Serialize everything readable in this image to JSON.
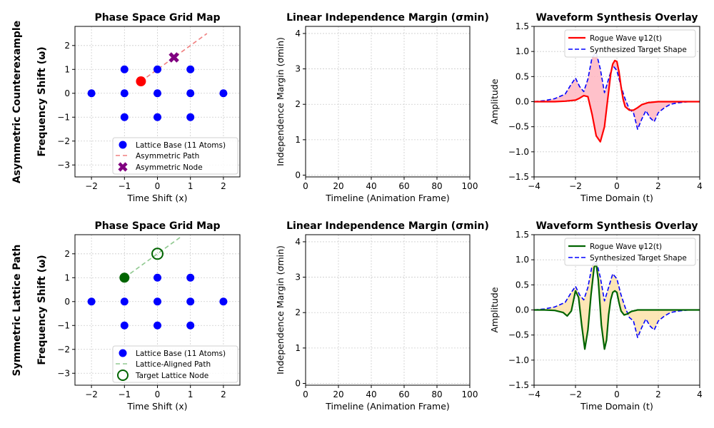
{
  "figure": {
    "row_labels": [
      "Asymmetric Counterexample",
      "Symmetric Lattice Path"
    ]
  },
  "chart_data": [
    {
      "panel": "row1-scatter",
      "type": "scatter",
      "title": "Phase Space Grid Map",
      "xlabel": "Time Shift (x)",
      "ylabel": "Frequency Shift (ω)",
      "xlim": [
        -2.5,
        2.5
      ],
      "ylim": [
        -3.5,
        2.8
      ],
      "xticks": [
        -2,
        -1,
        0,
        1,
        2
      ],
      "yticks": [
        -3,
        -2,
        -1,
        0,
        1,
        2
      ],
      "grid": true,
      "legend_position": "bottom-right",
      "lattice": {
        "name": "Lattice Base (11 Atoms)",
        "color": "#0000ff",
        "points": [
          [
            -2,
            0
          ],
          [
            -1,
            -1
          ],
          [
            -1,
            0
          ],
          [
            -1,
            1
          ],
          [
            0,
            -1
          ],
          [
            0,
            0
          ],
          [
            0,
            1
          ],
          [
            1,
            -1
          ],
          [
            1,
            0
          ],
          [
            1,
            1
          ],
          [
            2,
            0
          ]
        ]
      },
      "path": {
        "name": "Asymmetric Path",
        "color": "#f08080",
        "from": [
          -0.5,
          0.5
        ],
        "to": [
          1.5,
          2.5
        ]
      },
      "start_point": {
        "x": -0.5,
        "y": 0.5,
        "color": "#ff0000"
      },
      "target": {
        "name": "Asymmetric Node",
        "x": 0.5,
        "y": 1.5,
        "marker": "x",
        "color": "#800080"
      }
    },
    {
      "panel": "row1-margin",
      "type": "line",
      "title": "Linear Independence Margin (σmin)",
      "xlabel": "Timeline (Animation Frame)",
      "ylabel": "Independence Margin (σmin)",
      "xlim": [
        0,
        100
      ],
      "ylim": [
        -0.05,
        4.2
      ],
      "xticks": [
        0,
        20,
        40,
        60,
        80,
        100
      ],
      "yticks": [
        0,
        1,
        2,
        3,
        4
      ],
      "grid": true,
      "series": []
    },
    {
      "panel": "row1-wave",
      "type": "line",
      "title": "Waveform Synthesis Overlay",
      "xlabel": "Time Domain (t)",
      "ylabel": "Amplitude",
      "xlim": [
        -4,
        4
      ],
      "ylim": [
        -1.5,
        1.5
      ],
      "xticks": [
        -4,
        -2,
        0,
        2,
        4
      ],
      "yticks": [
        -1.5,
        -1.0,
        -0.5,
        0.0,
        0.5,
        1.0,
        1.5
      ],
      "grid": true,
      "legend_position": "top-right",
      "fill_color": "#ffb6c1",
      "series": [
        {
          "name": "Rogue Wave ψ12(t)",
          "color": "#ff0000",
          "style": "solid",
          "x": [
            -4,
            -3.5,
            -3,
            -2.5,
            -2,
            -1.8,
            -1.6,
            -1.4,
            -1.2,
            -1.0,
            -0.8,
            -0.6,
            -0.4,
            -0.3,
            -0.2,
            -0.1,
            0,
            0.1,
            0.2,
            0.3,
            0.4,
            0.6,
            0.8,
            1.0,
            1.2,
            1.5,
            2,
            2.5,
            3,
            3.5,
            4
          ],
          "y": [
            0,
            0,
            0,
            0.01,
            0.03,
            0.07,
            0.12,
            0.1,
            -0.25,
            -0.68,
            -0.8,
            -0.5,
            0.2,
            0.55,
            0.75,
            0.82,
            0.8,
            0.6,
            0.3,
            0.05,
            -0.1,
            -0.17,
            -0.17,
            -0.12,
            -0.06,
            -0.02,
            0,
            0,
            0,
            0,
            0
          ]
        },
        {
          "name": "Synthesized Target Shape",
          "color": "#0000ff",
          "style": "dashed",
          "x": [
            -4,
            -3.5,
            -3,
            -2.5,
            -2.2,
            -2.0,
            -1.8,
            -1.6,
            -1.4,
            -1.2,
            -1.0,
            -0.8,
            -0.6,
            -0.4,
            -0.2,
            0,
            0.2,
            0.4,
            0.6,
            0.8,
            1.0,
            1.2,
            1.4,
            1.6,
            1.8,
            2.0,
            2.3,
            2.6,
            3,
            3.5,
            4
          ],
          "y": [
            0,
            0.02,
            0.06,
            0.15,
            0.35,
            0.47,
            0.3,
            0.2,
            0.45,
            0.88,
            0.98,
            0.65,
            0.18,
            0.45,
            0.72,
            0.62,
            0.3,
            0.05,
            -0.15,
            -0.22,
            -0.55,
            -0.35,
            -0.18,
            -0.32,
            -0.4,
            -0.22,
            -0.12,
            -0.05,
            -0.02,
            0,
            0
          ]
        }
      ]
    },
    {
      "panel": "row2-scatter",
      "type": "scatter",
      "title": "Phase Space Grid Map",
      "xlabel": "Time Shift (x)",
      "ylabel": "Frequency Shift (ω)",
      "xlim": [
        -2.5,
        2.5
      ],
      "ylim": [
        -3.5,
        2.8
      ],
      "xticks": [
        -2,
        -1,
        0,
        1,
        2
      ],
      "yticks": [
        -3,
        -2,
        -1,
        0,
        1,
        2
      ],
      "grid": true,
      "legend_position": "bottom-right",
      "lattice": {
        "name": "Lattice Base (11 Atoms)",
        "color": "#0000ff",
        "points": [
          [
            -2,
            0
          ],
          [
            -1,
            -1
          ],
          [
            -1,
            0
          ],
          [
            -1,
            1
          ],
          [
            0,
            -1
          ],
          [
            0,
            0
          ],
          [
            0,
            1
          ],
          [
            1,
            -1
          ],
          [
            1,
            0
          ],
          [
            1,
            1
          ],
          [
            2,
            0
          ]
        ]
      },
      "path": {
        "name": "Lattice-Aligned Path",
        "color": "#90c990",
        "from": [
          -1,
          1
        ],
        "to": [
          0.7,
          2.7
        ]
      },
      "start_point": {
        "x": -1,
        "y": 1,
        "color": "#006400"
      },
      "target": {
        "name": "Target Lattice Node",
        "x": 0,
        "y": 2,
        "marker": "open-circle",
        "color": "#006400"
      }
    },
    {
      "panel": "row2-margin",
      "type": "line",
      "title": "Linear Independence Margin (σmin)",
      "xlabel": "Timeline (Animation Frame)",
      "ylabel": "Independence Margin (σmin)",
      "xlim": [
        0,
        100
      ],
      "ylim": [
        -0.05,
        4.2
      ],
      "xticks": [
        0,
        20,
        40,
        60,
        80,
        100
      ],
      "yticks": [
        0,
        1,
        2,
        3,
        4
      ],
      "grid": true,
      "series": []
    },
    {
      "panel": "row2-wave",
      "type": "line",
      "title": "Waveform Synthesis Overlay",
      "xlabel": "Time Domain (t)",
      "ylabel": "Amplitude",
      "xlim": [
        -4,
        4
      ],
      "ylim": [
        -1.5,
        1.5
      ],
      "xticks": [
        -4,
        -2,
        0,
        2,
        4
      ],
      "yticks": [
        -1.5,
        -1.0,
        -0.5,
        0.0,
        0.5,
        1.0,
        1.5
      ],
      "grid": true,
      "legend_position": "top-right",
      "fill_color": "#fde2a8",
      "series": [
        {
          "name": "Rogue Wave ψ12(t)",
          "color": "#006400",
          "style": "solid",
          "x": [
            -4,
            -3.5,
            -3,
            -2.6,
            -2.4,
            -2.2,
            -2.0,
            -1.85,
            -1.7,
            -1.55,
            -1.4,
            -1.25,
            -1.1,
            -1.0,
            -0.9,
            -0.75,
            -0.6,
            -0.5,
            -0.4,
            -0.3,
            -0.2,
            -0.1,
            0,
            0.1,
            0.2,
            0.35,
            0.5,
            0.7,
            1.0,
            1.5,
            2,
            3,
            4
          ],
          "y": [
            0,
            0,
            -0.01,
            -0.05,
            -0.12,
            -0.02,
            0.38,
            0.25,
            -0.3,
            -0.78,
            -0.4,
            0.3,
            0.85,
            0.92,
            0.6,
            -0.3,
            -0.78,
            -0.6,
            -0.1,
            0.2,
            0.35,
            0.38,
            0.35,
            0.15,
            -0.02,
            -0.1,
            -0.08,
            -0.03,
            0,
            0,
            0,
            0,
            0
          ]
        },
        {
          "name": "Synthesized Target Shape",
          "color": "#0000ff",
          "style": "dashed",
          "x": [
            -4,
            -3.5,
            -3,
            -2.5,
            -2.2,
            -2.0,
            -1.8,
            -1.6,
            -1.4,
            -1.2,
            -1.0,
            -0.8,
            -0.6,
            -0.4,
            -0.2,
            0,
            0.2,
            0.4,
            0.6,
            0.8,
            1.0,
            1.2,
            1.4,
            1.6,
            1.8,
            2.0,
            2.3,
            2.6,
            3,
            3.5,
            4
          ],
          "y": [
            0,
            0.02,
            0.06,
            0.15,
            0.35,
            0.47,
            0.3,
            0.2,
            0.45,
            0.88,
            0.98,
            0.65,
            0.18,
            0.45,
            0.72,
            0.62,
            0.3,
            0.05,
            -0.15,
            -0.22,
            -0.55,
            -0.35,
            -0.18,
            -0.32,
            -0.4,
            -0.22,
            -0.12,
            -0.05,
            -0.02,
            0,
            0
          ]
        }
      ]
    }
  ]
}
